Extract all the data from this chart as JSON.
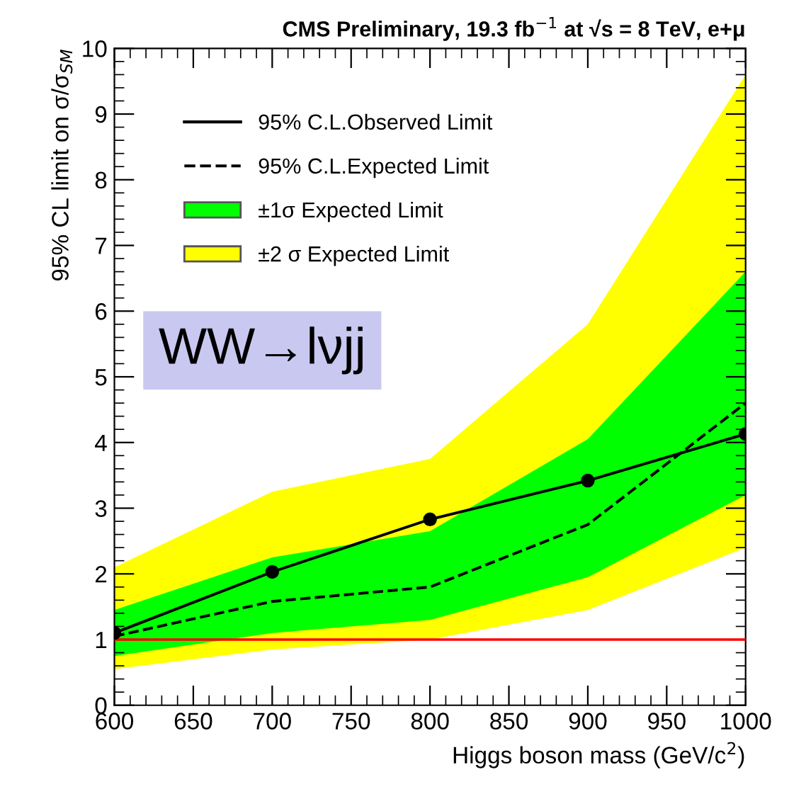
{
  "chart_data": {
    "type": "line",
    "title": "CMS Preliminary, 19.3 fb$^{−1}$ at √s = 8 TeV, e+μ",
    "xlabel": "Higgs boson mass (GeV/c$^{2}$)",
    "ylabel": "95% CL limit on σ/σ$_{SM}$",
    "x": [
      600,
      700,
      800,
      900,
      1000
    ],
    "series": [
      {
        "name": "±2 σ Expected Limit",
        "type": "area",
        "color": "#ffff00",
        "values": [
          null,
          null,
          null,
          null,
          null
        ],
        "lower": [
          0.55,
          0.85,
          1.0,
          1.45,
          2.4
        ],
        "upper": [
          2.1,
          3.25,
          3.75,
          5.8,
          9.6
        ]
      },
      {
        "name": "±1σ Expected Limit",
        "type": "area",
        "color": "#00ff00",
        "values": [
          null,
          null,
          null,
          null,
          null
        ],
        "lower": [
          0.75,
          1.1,
          1.3,
          1.95,
          3.2
        ],
        "upper": [
          1.45,
          2.25,
          2.65,
          4.05,
          6.6
        ]
      },
      {
        "name": "95% C.L.Expected Limit",
        "color": "#000000",
        "line_style": "dashed",
        "marker": "none",
        "values": [
          1.05,
          1.58,
          1.8,
          2.75,
          4.6
        ]
      },
      {
        "name": "95% C.L.Observed Limit",
        "color": "#000000",
        "line_style": "solid",
        "marker": "circle",
        "values": [
          1.1,
          2.03,
          2.83,
          3.42,
          4.13
        ]
      }
    ],
    "ref_lines": [
      {
        "axis": "y",
        "value": 1,
        "color": "#ff0000"
      }
    ],
    "annotations": [
      "WW→lνjj"
    ],
    "xlim": [
      600,
      1000
    ],
    "xticks": [
      600,
      650,
      700,
      750,
      800,
      850,
      900,
      950,
      1000
    ],
    "ylim": [
      0,
      10
    ],
    "yticks": [
      0,
      1,
      2,
      3,
      4,
      5,
      6,
      7,
      8,
      9,
      10
    ],
    "grid": false,
    "legend": "top left"
  }
}
